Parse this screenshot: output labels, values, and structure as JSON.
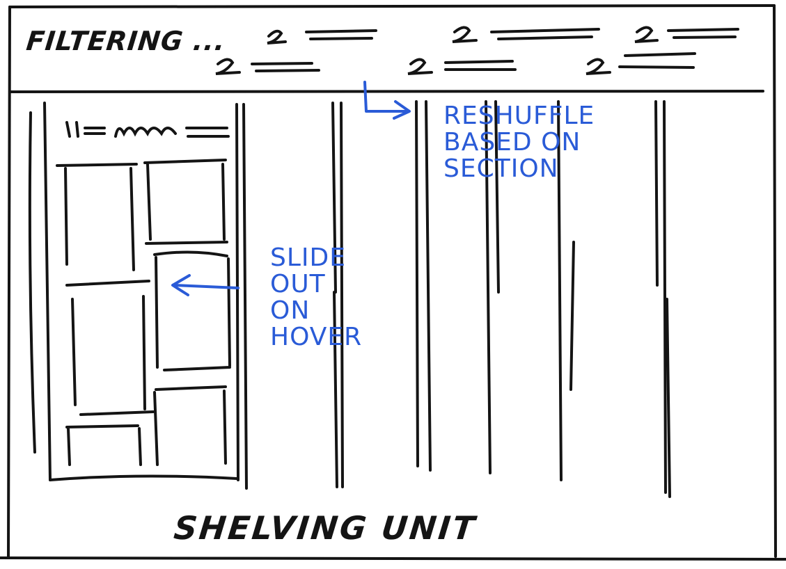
{
  "header": {
    "filter_label": "FILTERING ...",
    "filter_marker": "2"
  },
  "annotations": {
    "slide_out": [
      "SLIDE",
      "OUT",
      "ON",
      "HOVER"
    ],
    "reshuffle": [
      "RESHUFFLE",
      "BASED ON",
      "SECTION"
    ]
  },
  "footer": {
    "label": "SHELVING UNIT"
  },
  "shelf_panel": {
    "title_marker": "u="
  },
  "colors": {
    "ink": "#141414",
    "annotation": "#2a5bd7",
    "paper": "#ffffff"
  }
}
